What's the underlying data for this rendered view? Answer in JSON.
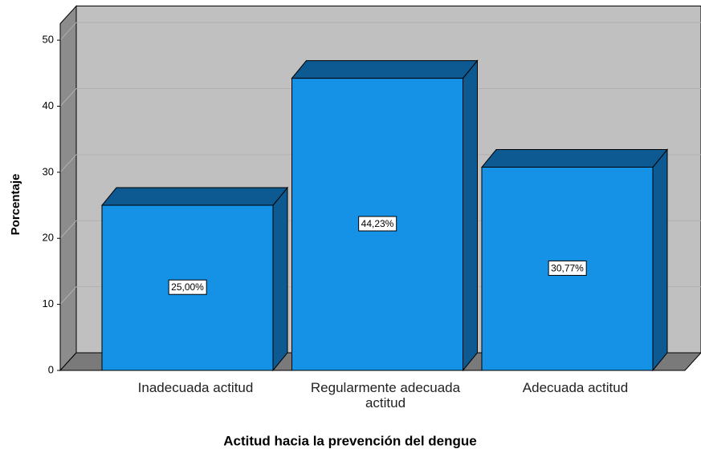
{
  "chart_data": {
    "type": "bar3d",
    "categories": [
      "Inadecuada actitud",
      "Regularmente adecuada actitud",
      "Adecuada actitud"
    ],
    "values": [
      25.0,
      44.23,
      30.77
    ],
    "value_labels": [
      "25,00%",
      "44,23%",
      "30,77%"
    ],
    "color": "#1592e6",
    "x_label": "Actitud hacia la prevención del dengue",
    "y_label": "Porcentaje",
    "ylim": [
      0,
      52.5
    ],
    "yticks": [
      0,
      10,
      20,
      30,
      40,
      50
    ],
    "grid": true
  }
}
